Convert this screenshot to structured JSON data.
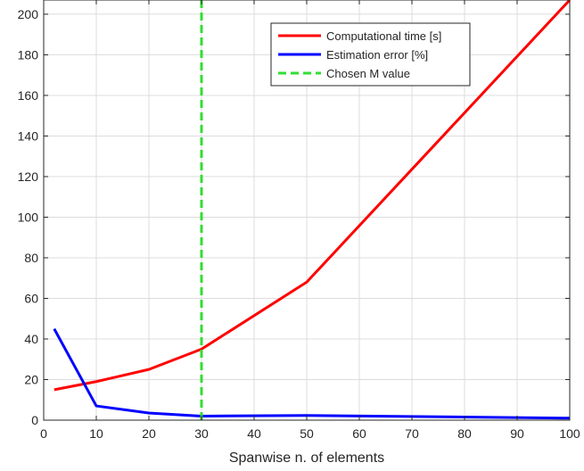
{
  "chart_data": {
    "type": "line",
    "title": "",
    "xlabel": "Spanwise n. of elements",
    "ylabel": "",
    "xlim": [
      0,
      100
    ],
    "ylim": [
      0,
      207
    ],
    "xticks": [
      0,
      10,
      20,
      30,
      40,
      50,
      60,
      70,
      80,
      90,
      100
    ],
    "yticks": [
      0,
      20,
      40,
      60,
      80,
      100,
      120,
      140,
      160,
      180,
      200
    ],
    "grid": true,
    "legend_position": "top-right",
    "series": [
      {
        "name": "Computational time [s]",
        "color": "#ff0000",
        "style": "solid",
        "x": [
          2,
          10,
          20,
          30,
          50,
          100
        ],
        "y": [
          15,
          19,
          25,
          35,
          68,
          207
        ]
      },
      {
        "name": "Estimation error [%]",
        "color": "#0000ff",
        "style": "solid",
        "x": [
          2,
          10,
          20,
          30,
          50,
          100
        ],
        "y": [
          45,
          7,
          3.5,
          2,
          2.3,
          1
        ]
      },
      {
        "name": "Chosen M value",
        "color": "#33dd33",
        "style": "dashed",
        "x": [
          30,
          30
        ],
        "y": [
          0,
          207
        ]
      }
    ]
  }
}
